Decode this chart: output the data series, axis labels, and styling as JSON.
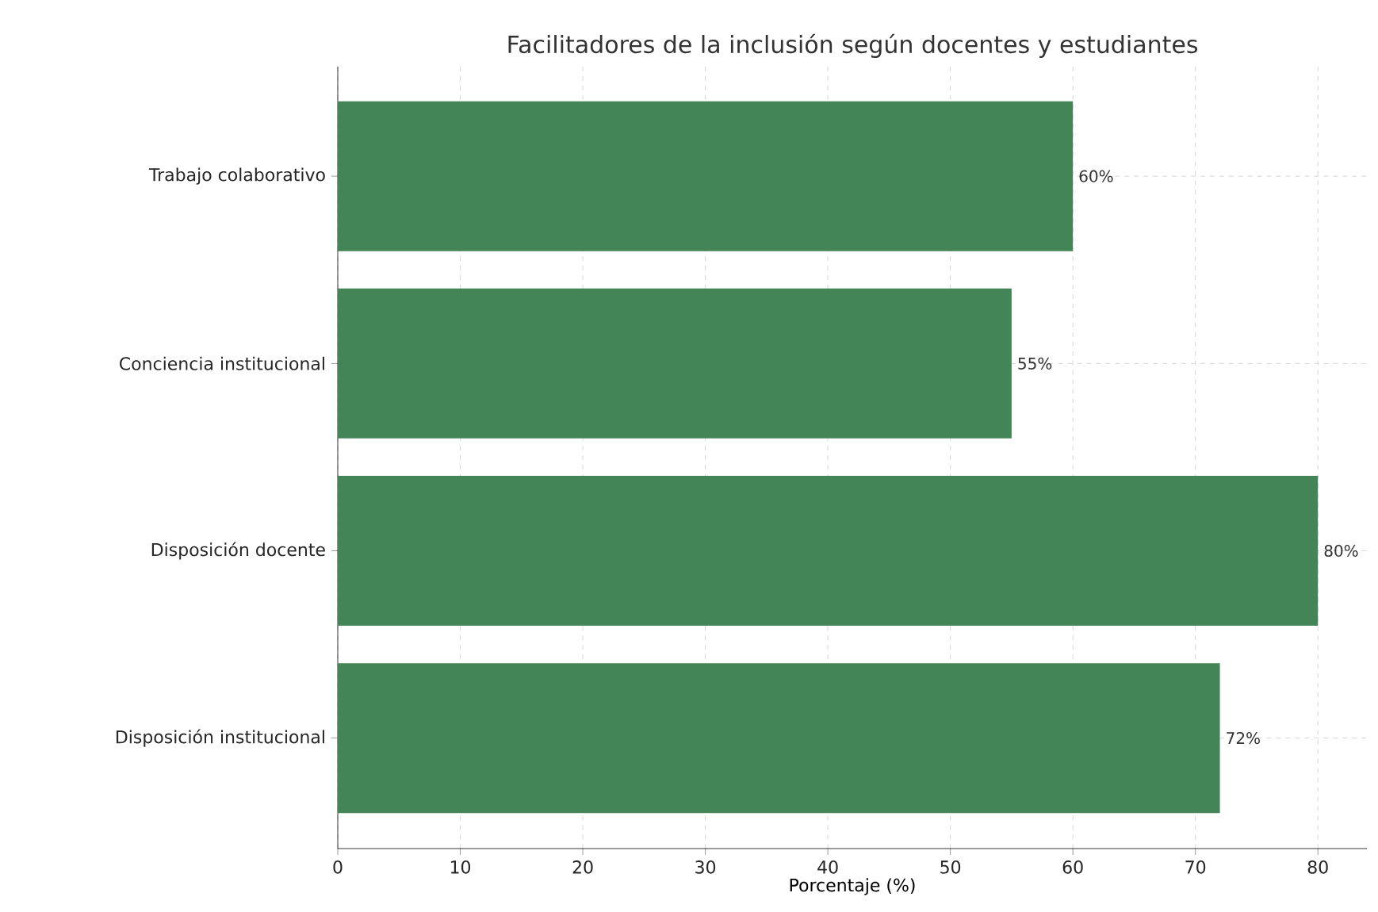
{
  "chart_data": {
    "type": "bar",
    "orientation": "horizontal",
    "title": "Facilitadores de la inclusión según docentes y estudiantes",
    "xlabel": "Porcentaje (%)",
    "categories": [
      "Trabajo colaborativo",
      "Conciencia institucional",
      "Disposición docente",
      "Disposición institucional"
    ],
    "values": [
      60,
      55,
      80,
      72
    ],
    "value_labels": [
      "60%",
      "55%",
      "80%",
      "72%"
    ],
    "color": "#448557",
    "xlim": [
      0,
      84
    ],
    "xticks": [
      0,
      10,
      20,
      30,
      40,
      50,
      60,
      70,
      80
    ],
    "grid": true
  }
}
